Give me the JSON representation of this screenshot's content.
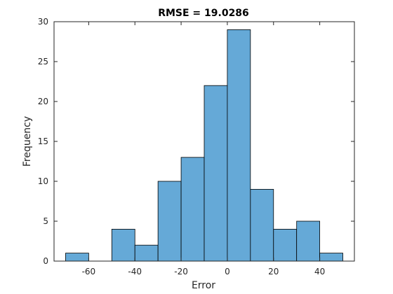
{
  "chart_data": {
    "type": "bar",
    "title": "RMSE = 19.0286",
    "xlabel": "Error",
    "ylabel": "Frequency",
    "xlim": [
      -75,
      55
    ],
    "ylim": [
      0,
      30
    ],
    "bin_edges": [
      -70,
      -60,
      -50,
      -40,
      -30,
      -20,
      -10,
      0,
      10,
      20,
      30,
      40,
      50
    ],
    "counts": [
      1,
      0,
      4,
      2,
      10,
      13,
      22,
      29,
      9,
      4,
      5,
      1
    ],
    "xticks": [
      -60,
      -40,
      -20,
      0,
      20,
      40
    ],
    "xtick_labels": [
      "-60",
      "-40",
      "-20",
      "0",
      "20",
      "40"
    ],
    "yticks": [
      0,
      5,
      10,
      15,
      20,
      25,
      30
    ],
    "ytick_labels": [
      "0",
      "5",
      "10",
      "15",
      "20",
      "25",
      "30"
    ],
    "bar_color": "#65A9D7",
    "edge_color": "#000000",
    "grid": false,
    "legend": "none"
  }
}
